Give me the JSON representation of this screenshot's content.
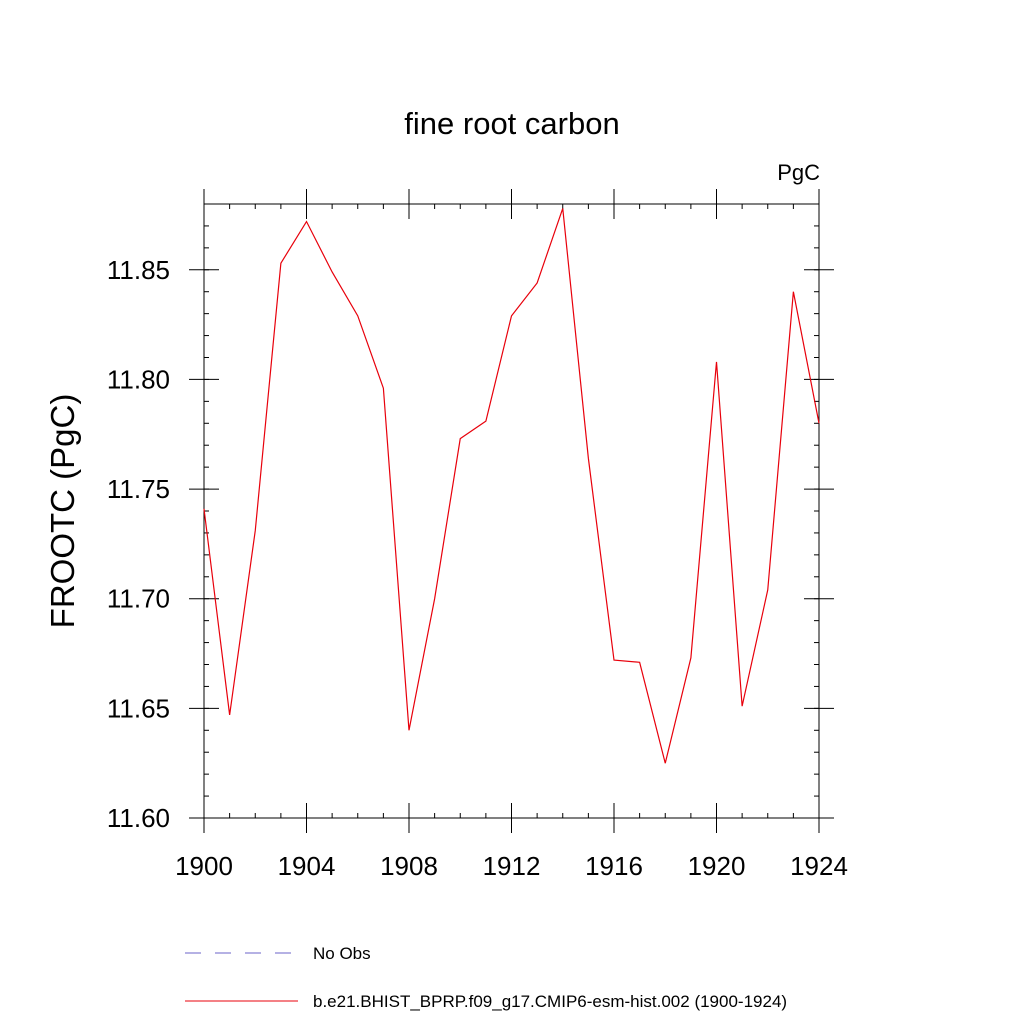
{
  "chart_data": {
    "type": "line",
    "title": "fine root carbon",
    "units_label": "PgC",
    "ylabel": "FROOTC  (PgC)",
    "xlabel": "",
    "xlim": [
      1900,
      1924
    ],
    "ylim": [
      11.6,
      11.88
    ],
    "x_ticks": [
      1900,
      1904,
      1908,
      1912,
      1916,
      1920,
      1924
    ],
    "x_tick_labels": [
      "1900",
      "1904",
      "1908",
      "1912",
      "1916",
      "1920",
      "1924"
    ],
    "y_ticks": [
      11.6,
      11.65,
      11.7,
      11.75,
      11.8,
      11.85
    ],
    "y_tick_labels": [
      "11.60",
      "11.65",
      "11.70",
      "11.75",
      "11.80",
      "11.85"
    ],
    "grid": false,
    "series": [
      {
        "name": "b.e21.BHIST_BPRP.f09_g17.CMIP6-esm-hist.002 (1900-1924)",
        "color": "#e8000b",
        "x": [
          1900,
          1901,
          1902,
          1903,
          1904,
          1905,
          1906,
          1907,
          1908,
          1909,
          1910,
          1911,
          1912,
          1913,
          1914,
          1915,
          1916,
          1917,
          1918,
          1919,
          1920,
          1921,
          1922,
          1923,
          1924
        ],
        "values": [
          11.741,
          11.647,
          11.731,
          11.853,
          11.872,
          11.849,
          11.829,
          11.796,
          11.64,
          11.7,
          11.773,
          11.781,
          11.829,
          11.844,
          11.878,
          11.764,
          11.672,
          11.671,
          11.625,
          11.673,
          11.808,
          11.651,
          11.704,
          11.84,
          11.78
        ]
      }
    ],
    "legend": {
      "placement": "bottom",
      "entries": [
        {
          "label": "No Obs",
          "color": "#6b63c8",
          "style": "dashed"
        },
        {
          "label": "b.e21.BHIST_BPRP.f09_g17.CMIP6-esm-hist.002 (1900-1924)",
          "color": "#e8000b",
          "style": "solid"
        }
      ]
    }
  }
}
